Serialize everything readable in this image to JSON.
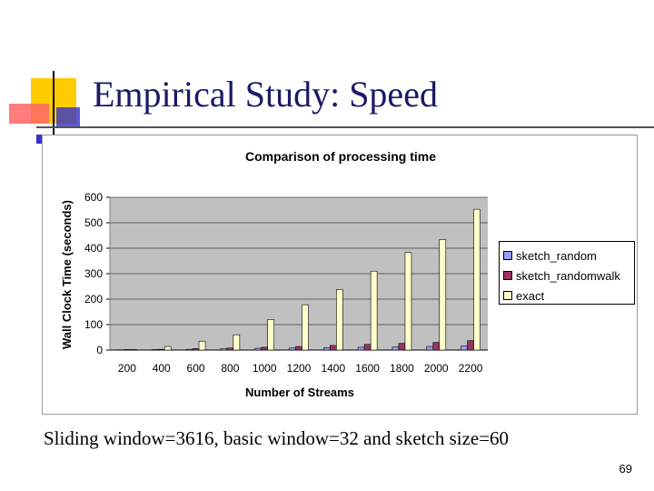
{
  "slide": {
    "title": "Empirical Study: Speed",
    "caption": "Sliding window=3616, basic window=32 and sketch size=60",
    "page_number": "69"
  },
  "colors": {
    "title": "#1a1a66",
    "plot_bg": "#c0c0c0",
    "sketch_random": "#9999ff",
    "sketch_randomwalk": "#993366",
    "exact": "#ffffcc"
  },
  "chart_data": {
    "type": "bar",
    "title": "Comparison of processing time",
    "xlabel": "Number of Streams",
    "ylabel": "Wall Clock Time (seconds)",
    "ylim": [
      0,
      600
    ],
    "yticks": [
      0,
      100,
      200,
      300,
      400,
      500,
      600
    ],
    "grid": true,
    "legend_position": "right",
    "categories": [
      "200",
      "400",
      "600",
      "800",
      "1000",
      "1200",
      "1400",
      "1600",
      "1800",
      "2000",
      "2200"
    ],
    "series": [
      {
        "name": "sketch_random",
        "values": [
          1,
          2,
          3,
          5,
          7,
          8,
          9,
          11,
          12,
          14,
          16
        ]
      },
      {
        "name": "sketch_randomwalk",
        "values": [
          2,
          3,
          6,
          8,
          11,
          14,
          18,
          22,
          26,
          30,
          37
        ]
      },
      {
        "name": "exact",
        "values": [
          2,
          14,
          35,
          60,
          120,
          178,
          238,
          310,
          383,
          434,
          553
        ]
      }
    ]
  }
}
